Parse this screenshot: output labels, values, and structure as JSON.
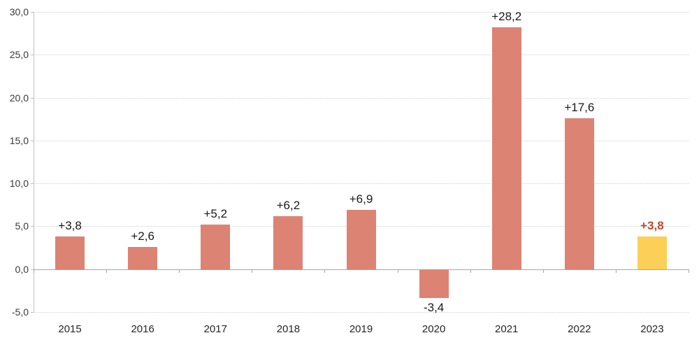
{
  "chart_data": {
    "type": "bar",
    "title": "",
    "xlabel": "",
    "ylabel": "",
    "categories": [
      "2015",
      "2016",
      "2017",
      "2018",
      "2019",
      "2020",
      "2021",
      "2022",
      "2023"
    ],
    "values": [
      3.8,
      2.6,
      5.2,
      6.2,
      6.9,
      -3.4,
      28.2,
      17.6,
      3.8
    ],
    "value_labels": [
      "+3,8",
      "+2,6",
      "+5,2",
      "+6,2",
      "+6,9",
      "-3,4",
      "+28,2",
      "+17,6",
      "+3,8"
    ],
    "ylim": [
      -5,
      30
    ],
    "ytick_step": 5,
    "ytick_labels": [
      "-5,0",
      "0,0",
      "5,0",
      "10,0",
      "15,0",
      "20,0",
      "25,0",
      "30,0"
    ],
    "grid": true,
    "legend": null,
    "highlight_index": 8,
    "colors": {
      "bar": "#dd8374",
      "highlight_bar": "#fccf56",
      "label": "#1a1a1a",
      "highlight_label": "#c0492b",
      "gridline": "#cfcfcf",
      "zero_line": "#a6a6a6",
      "axis_line": "#bfbfbf"
    }
  }
}
